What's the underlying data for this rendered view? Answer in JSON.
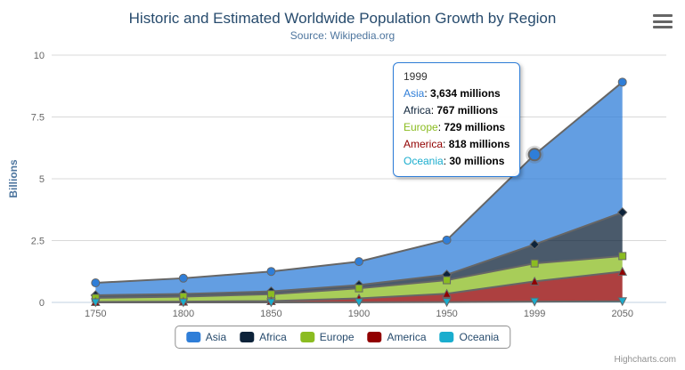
{
  "header": {
    "title": "Historic and Estimated Worldwide Population Growth by Region",
    "subtitle": "Source: Wikipedia.org"
  },
  "y_axis": {
    "title": "Billions"
  },
  "credits": "Highcharts.com",
  "export_menu_icon": "hamburger-icon",
  "tooltip": {
    "header": "1999",
    "unit": "millions",
    "rows": [
      {
        "name": "Asia",
        "value": "3,634"
      },
      {
        "name": "Africa",
        "value": "767"
      },
      {
        "name": "Europe",
        "value": "729"
      },
      {
        "name": "America",
        "value": "818"
      },
      {
        "name": "Oceania",
        "value": "30"
      }
    ]
  },
  "hover": {
    "series": "Asia",
    "category": "1999"
  },
  "colors": {
    "title": "#274b6d",
    "subtitle": "#4d759e",
    "axis_label": "#666666",
    "gridline": "#d8d8d8",
    "axis_line": "#c0d0e0",
    "series_outline": "#666666",
    "legend_border": "#909090",
    "tooltip_border": "#2f7ed8"
  },
  "chart_data": {
    "type": "area",
    "stacking": "normal",
    "title": "Historic and Estimated Worldwide Population Growth by Region",
    "subtitle": "Source: Wikipedia.org",
    "categories": [
      "1750",
      "1800",
      "1850",
      "1900",
      "1950",
      "1999",
      "2050"
    ],
    "unit": "millions",
    "series": [
      {
        "name": "Asia",
        "color": "#2f7ed8",
        "marker": "circle",
        "values": [
          502,
          635,
          809,
          947,
          1402,
          3634,
          5268
        ]
      },
      {
        "name": "Africa",
        "color": "#0d233a",
        "marker": "diamond",
        "values": [
          106,
          107,
          111,
          133,
          221,
          767,
          1766
        ]
      },
      {
        "name": "Europe",
        "color": "#8bbc21",
        "marker": "square",
        "values": [
          163,
          203,
          276,
          408,
          547,
          729,
          628
        ]
      },
      {
        "name": "America",
        "color": "#910000",
        "marker": "triangle",
        "values": [
          18,
          31,
          54,
          156,
          339,
          818,
          1201
        ]
      },
      {
        "name": "Oceania",
        "color": "#1aadce",
        "marker": "triangle-down",
        "values": [
          2,
          2,
          2,
          6,
          13,
          30,
          46
        ]
      }
    ],
    "xlabel": "",
    "ylabel": "Billions",
    "ylim": [
      0,
      10
    ],
    "yticks": [
      0,
      2.5,
      5,
      7.5,
      10
    ],
    "grid": true,
    "legend_position": "bottom",
    "fill_opacity": 0.75
  }
}
